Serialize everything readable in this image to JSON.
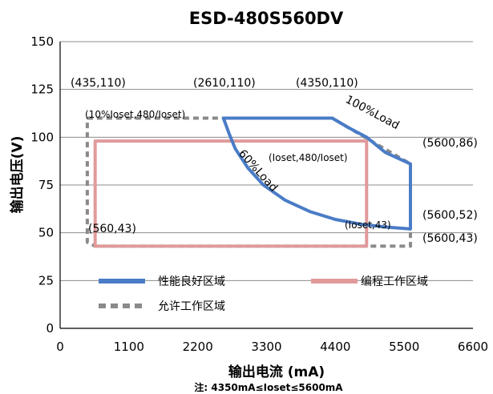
{
  "chart_data": {
    "type": "line",
    "title": "ESD-480S560DV",
    "xlabel": "输出电流 (mA)",
    "ylabel": "输出电压(V)",
    "note": "注:  4350mA≤Ioset≤5600mA",
    "xlim": [
      0,
      6600
    ],
    "ylim": [
      0,
      150
    ],
    "xticks": [
      0,
      1100,
      2200,
      3300,
      4400,
      5500,
      6600
    ],
    "yticks": [
      0,
      25,
      50,
      75,
      100,
      125,
      150
    ],
    "grid": "horizontal",
    "legend_position": "bottom-inside",
    "series": [
      {
        "name": "性能良好区域",
        "color": "#4a7cc7",
        "style": "solid",
        "points": [
          [
            2610,
            110
          ],
          [
            4350,
            110
          ],
          [
            4610,
            105
          ],
          [
            4900,
            100
          ],
          [
            5200,
            92
          ],
          [
            5600,
            86
          ],
          [
            5600,
            52
          ],
          [
            5200,
            53
          ],
          [
            4800,
            54.5
          ],
          [
            4400,
            57
          ],
          [
            4000,
            61
          ],
          [
            3600,
            67
          ],
          [
            3250,
            75
          ],
          [
            3000,
            84
          ],
          [
            2800,
            94
          ],
          [
            2700,
            102
          ],
          [
            2610,
            110
          ]
        ]
      },
      {
        "name": "编程工作区域",
        "color": "#e09a9a",
        "style": "solid",
        "points": [
          [
            560,
            43
          ],
          [
            4900,
            43
          ],
          [
            4900,
            98
          ],
          [
            560,
            98
          ],
          [
            560,
            43
          ]
        ]
      },
      {
        "name": "允许工作区域",
        "color": "#8a8a8a",
        "style": "dashed",
        "points": [
          [
            435,
            110
          ],
          [
            2610,
            110
          ],
          [
            4350,
            110
          ],
          [
            5600,
            86
          ],
          [
            5600,
            43
          ],
          [
            560,
            43
          ],
          [
            435,
            45
          ],
          [
            435,
            110
          ]
        ]
      }
    ],
    "annotations": {
      "p1": "(435,110)",
      "p2": "(2610,110)",
      "p3": "(4350,110)",
      "p4": "(5600,86)",
      "p5": "(5600,52)",
      "p6": "(5600,43)",
      "p7": "(560,43)",
      "p8": "(Ioset,43)",
      "p9": "(10%Ioset,480/Ioset)",
      "p10": "(Ioset,480/Ioset)",
      "load100": "100%Load",
      "load60": "60%Load"
    }
  }
}
